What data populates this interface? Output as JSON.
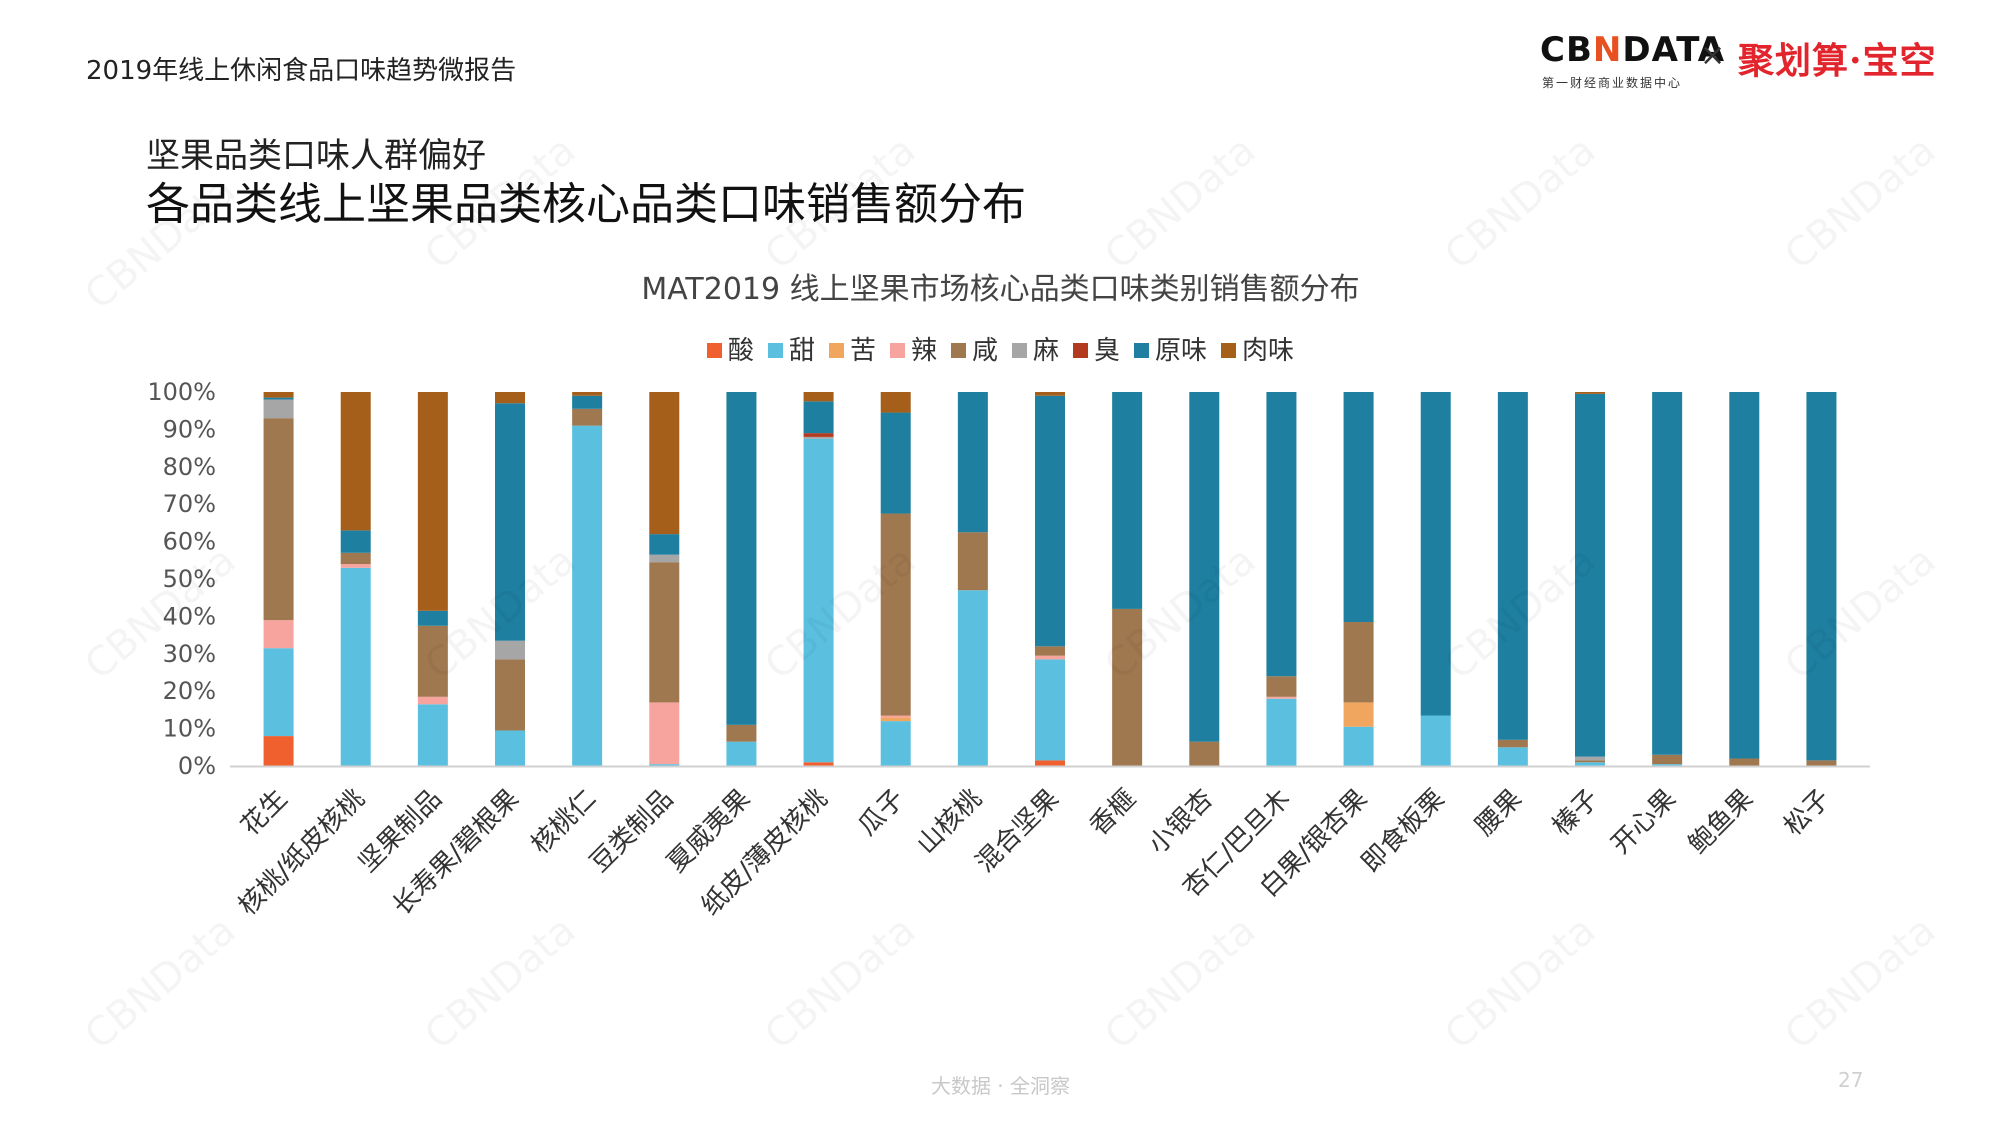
{
  "header": {
    "report_title": "2019年线上休闲食品口味趋势微报告",
    "brand_cbn": "CBNDATA",
    "brand_cbn_sub": "第一财经商业数据中心",
    "brand_x": "×",
    "brand_jhs": "聚划算·宝空"
  },
  "page": {
    "subtitle": "坚果品类口味人群偏好",
    "main_title": "各品类线上坚果品类核心品类口味销售额分布"
  },
  "footer": {
    "text": "大数据 · 全洞察",
    "page_number": "27"
  },
  "watermark": "CBNData",
  "chart_data": {
    "type": "bar",
    "stacked": true,
    "percent": true,
    "title": "MAT2019 线上坚果市场核心品类口味类别销售额分布",
    "xlabel": "",
    "ylabel": "",
    "ylim": [
      0,
      100
    ],
    "yticks": [
      "0%",
      "10%",
      "20%",
      "30%",
      "40%",
      "50%",
      "60%",
      "70%",
      "80%",
      "90%",
      "100%"
    ],
    "legend_position": "top-center",
    "grid": false,
    "categories": [
      "花生",
      "核桃/纸皮核桃",
      "坚果制品",
      "长寿果/碧根果",
      "核桃仁",
      "豆类制品",
      "夏威夷果",
      "纸皮/薄皮核桃",
      "瓜子",
      "山核桃",
      "混合坚果",
      "香榧",
      "小银杏",
      "杏仁/巴旦木",
      "白果/银杏果",
      "即食板栗",
      "腰果",
      "榛子",
      "开心果",
      "鲍鱼果",
      "松子"
    ],
    "series": [
      {
        "name": "酸",
        "color": "#f0602e",
        "values": [
          8,
          0,
          0,
          0,
          0,
          0,
          0,
          1,
          0,
          0,
          1.5,
          0,
          0,
          0,
          0,
          0,
          0,
          0,
          0,
          0,
          0
        ]
      },
      {
        "name": "甜",
        "color": "#5bc0e0",
        "values": [
          23.5,
          53,
          16.5,
          9.5,
          91,
          0.5,
          6.5,
          86.5,
          12,
          47,
          27,
          0,
          0,
          18,
          10.5,
          13.5,
          5,
          1,
          0.5,
          0,
          0
        ]
      },
      {
        "name": "苦",
        "color": "#f0a65e",
        "values": [
          0,
          0,
          0,
          0,
          0,
          0,
          0,
          0,
          1,
          0,
          0,
          0,
          0,
          0,
          6.5,
          0,
          0,
          0,
          0,
          0,
          0
        ]
      },
      {
        "name": "辣",
        "color": "#f7a49f",
        "values": [
          7.5,
          1,
          2,
          0,
          0,
          16.5,
          0,
          0,
          0.5,
          0,
          1,
          0,
          0,
          0.5,
          0,
          0,
          0,
          0,
          0,
          0,
          0
        ]
      },
      {
        "name": "咸",
        "color": "#a07850",
        "values": [
          54,
          3,
          19,
          19,
          4.5,
          37.5,
          4.5,
          0,
          54,
          15.5,
          2.5,
          42,
          6.5,
          5.5,
          21.5,
          0,
          2,
          0.5,
          2.5,
          2,
          1.5
        ]
      },
      {
        "name": "麻",
        "color": "#a6a6a6",
        "values": [
          5,
          0,
          0,
          5,
          0,
          2,
          0,
          0.5,
          0,
          0,
          0,
          0,
          0,
          0,
          0,
          0,
          0,
          1,
          0,
          0,
          0
        ]
      },
      {
        "name": "臭",
        "color": "#b33a1e",
        "values": [
          0,
          0,
          0,
          0,
          0,
          0,
          0,
          1,
          0,
          0,
          0,
          0,
          0,
          0,
          0,
          0,
          0,
          0,
          0,
          0,
          0
        ]
      },
      {
        "name": "原味",
        "color": "#1f7fa0",
        "values": [
          0.5,
          6,
          4,
          63.5,
          3.5,
          5.5,
          89,
          8.5,
          27,
          37.5,
          67,
          58,
          93.5,
          76,
          61.5,
          86.5,
          93,
          97,
          97,
          98,
          98.5
        ]
      },
      {
        "name": "肉味",
        "color": "#a65f1a",
        "values": [
          1.5,
          37,
          58.5,
          3,
          1,
          38,
          0,
          2.5,
          5.5,
          0,
          1,
          0,
          0,
          0,
          0,
          0,
          0,
          0.5,
          0,
          0,
          0
        ]
      }
    ]
  }
}
